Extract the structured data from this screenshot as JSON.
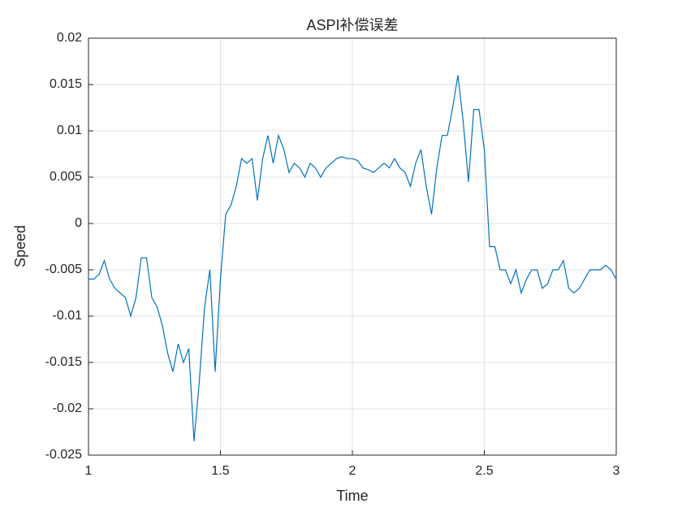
{
  "chart_data": {
    "type": "line",
    "title": "ASPI补偿误差",
    "xlabel": "Time",
    "ylabel": "Speed",
    "x": [
      1.0,
      1.02,
      1.04,
      1.06,
      1.08,
      1.1,
      1.12,
      1.14,
      1.16,
      1.18,
      1.2,
      1.22,
      1.24,
      1.26,
      1.28,
      1.3,
      1.32,
      1.34,
      1.36,
      1.38,
      1.4,
      1.42,
      1.44,
      1.46,
      1.48,
      1.5,
      1.52,
      1.54,
      1.56,
      1.58,
      1.6,
      1.62,
      1.64,
      1.66,
      1.68,
      1.7,
      1.72,
      1.74,
      1.76,
      1.78,
      1.8,
      1.82,
      1.84,
      1.86,
      1.88,
      1.9,
      1.92,
      1.94,
      1.96,
      1.98,
      2.0,
      2.02,
      2.04,
      2.06,
      2.08,
      2.1,
      2.12,
      2.14,
      2.16,
      2.18,
      2.2,
      2.22,
      2.24,
      2.26,
      2.28,
      2.3,
      2.32,
      2.34,
      2.36,
      2.38,
      2.4,
      2.42,
      2.44,
      2.46,
      2.48,
      2.5,
      2.52,
      2.54,
      2.56,
      2.58,
      2.6,
      2.62,
      2.64,
      2.66,
      2.68,
      2.7,
      2.72,
      2.74,
      2.76,
      2.78,
      2.8,
      2.82,
      2.84,
      2.86,
      2.88,
      2.9,
      2.92,
      2.94,
      2.96,
      2.98,
      3.0
    ],
    "series": [
      {
        "name": "Speed",
        "color": "#0072bd",
        "values": [
          -0.006,
          -0.006,
          -0.0055,
          -0.004,
          -0.006,
          -0.007,
          -0.0075,
          -0.008,
          -0.01,
          -0.008,
          -0.0037,
          -0.0037,
          -0.008,
          -0.009,
          -0.011,
          -0.014,
          -0.016,
          -0.013,
          -0.015,
          -0.0135,
          -0.0235,
          -0.017,
          -0.009,
          -0.005,
          -0.016,
          -0.006,
          0.001,
          0.002,
          0.004,
          0.007,
          0.0065,
          0.007,
          0.0025,
          0.007,
          0.0095,
          0.0065,
          0.0095,
          0.008,
          0.0055,
          0.0065,
          0.006,
          0.005,
          0.0065,
          0.006,
          0.005,
          0.006,
          0.0065,
          0.007,
          0.0072,
          0.007,
          0.007,
          0.0068,
          0.006,
          0.0058,
          0.0055,
          0.006,
          0.0065,
          0.006,
          0.007,
          0.006,
          0.0055,
          0.004,
          0.0065,
          0.008,
          0.004,
          0.001,
          0.006,
          0.0095,
          0.0095,
          0.0125,
          0.016,
          0.011,
          0.0045,
          0.0123,
          0.0123,
          0.008,
          -0.0025,
          -0.0025,
          -0.005,
          -0.005,
          -0.0065,
          -0.005,
          -0.0075,
          -0.006,
          -0.005,
          -0.005,
          -0.007,
          -0.0065,
          -0.005,
          -0.005,
          -0.004,
          -0.007,
          -0.0075,
          -0.007,
          -0.006,
          -0.005,
          -0.005,
          -0.005,
          -0.0045,
          -0.005,
          -0.006
        ]
      }
    ],
    "xlim": [
      1,
      3
    ],
    "xticks": [
      1,
      1.5,
      2,
      2.5,
      3
    ],
    "ylim": [
      -0.025,
      0.02
    ],
    "yticks": [
      -0.025,
      -0.02,
      -0.015,
      -0.01,
      -0.005,
      0,
      0.005,
      0.01,
      0.015,
      0.02
    ],
    "grid": true
  }
}
